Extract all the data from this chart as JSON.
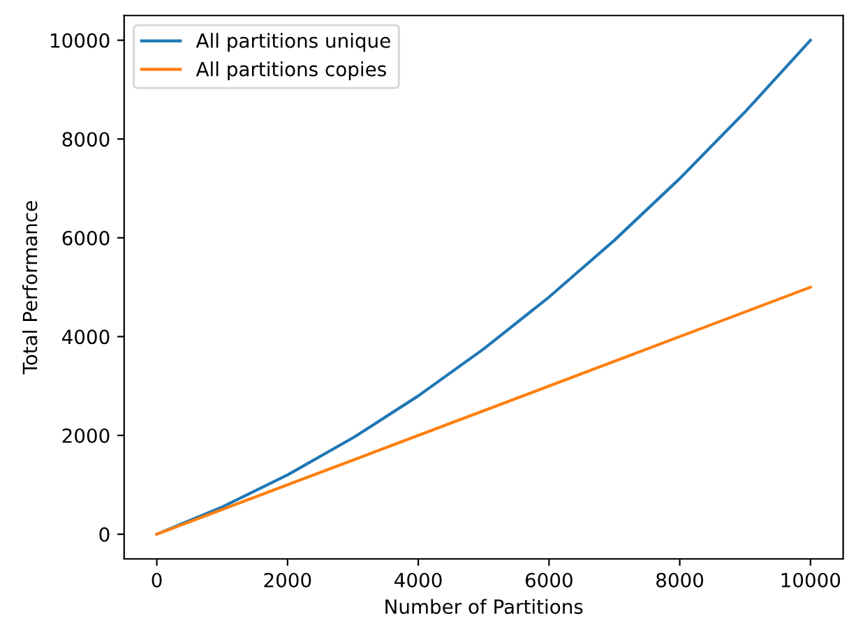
{
  "chart_data": {
    "type": "line",
    "xlabel": "Number of Partitions",
    "ylabel": "Total Performance",
    "xlim": [
      -500,
      10500
    ],
    "ylim": [
      -500,
      10500
    ],
    "xticks": [
      0,
      2000,
      4000,
      6000,
      8000,
      10000
    ],
    "yticks": [
      0,
      2000,
      4000,
      6000,
      8000,
      10000
    ],
    "grid": false,
    "legend": "top left",
    "series": [
      {
        "name": "All partitions unique",
        "color": "#1f77b4",
        "x": [
          0,
          1000,
          2000,
          3000,
          4000,
          5000,
          6000,
          7000,
          8000,
          9000,
          10000
        ],
        "values": [
          0,
          550,
          1200,
          1950,
          2800,
          3750,
          4800,
          5950,
          7200,
          8550,
          10000
        ]
      },
      {
        "name": "All partitions copies",
        "color": "#ff7f0e",
        "x": [
          0,
          2000,
          4000,
          6000,
          8000,
          10000
        ],
        "values": [
          0,
          1000,
          2000,
          3000,
          4000,
          5000
        ]
      }
    ]
  }
}
